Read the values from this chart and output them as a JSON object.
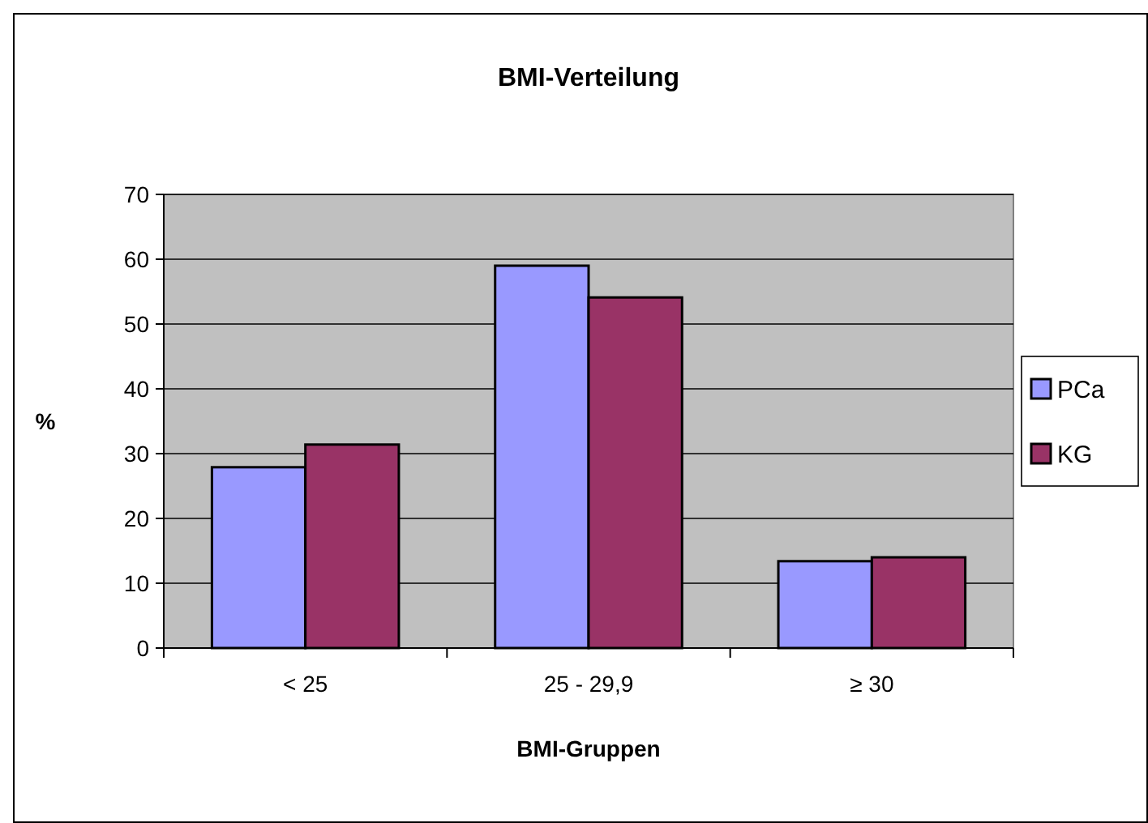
{
  "chart_data": {
    "type": "bar",
    "title": "BMI-Verteilung",
    "xlabel": "BMI-Gruppen",
    "ylabel": "%",
    "categories": [
      "< 25",
      "25 - 29,9",
      "≥ 30"
    ],
    "series": [
      {
        "name": "PCa",
        "color": "#9999ff",
        "values": [
          27.9,
          59,
          13.4
        ]
      },
      {
        "name": "KG",
        "color": "#993366",
        "values": [
          31.4,
          54.1,
          14
        ]
      }
    ],
    "ylim": [
      0,
      70
    ],
    "yticks": [
      0,
      10,
      20,
      30,
      40,
      50,
      60,
      70
    ],
    "grid": "y",
    "legend": "right"
  }
}
